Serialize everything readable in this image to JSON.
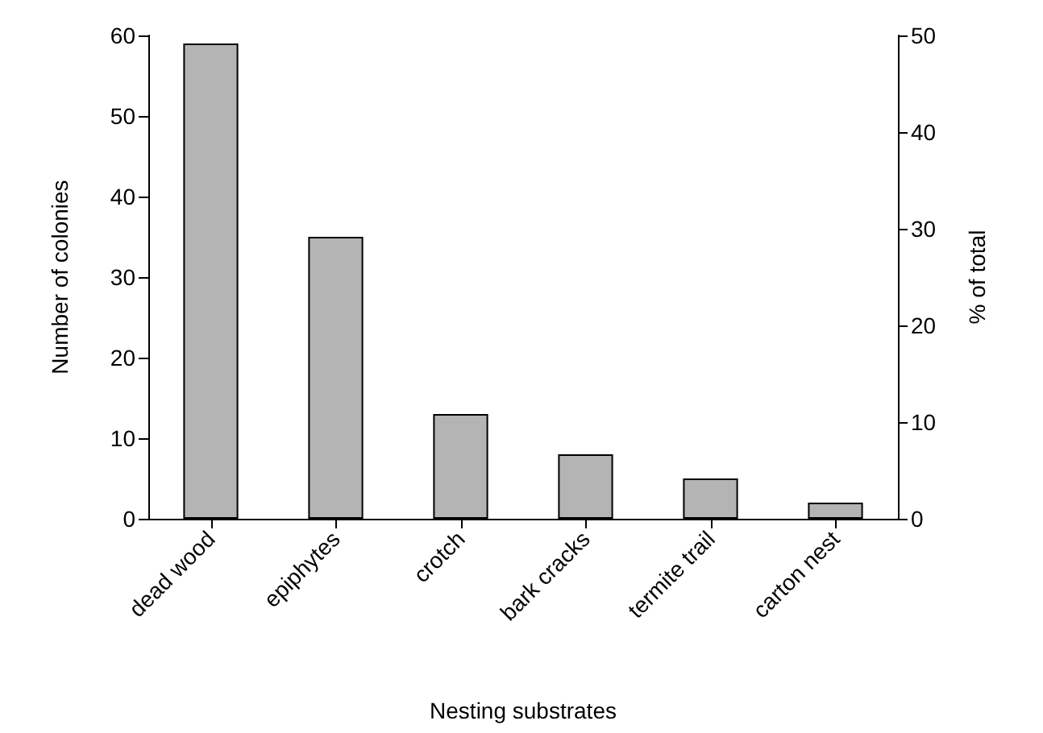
{
  "chart_data": {
    "type": "bar",
    "xlabel": "Nesting substrates",
    "ylabel": "Number of colonies",
    "y2label": "% of total",
    "categories": [
      "dead wood",
      "epiphytes",
      "crotch",
      "bark cracks",
      "termite trail",
      "carton nest"
    ],
    "values": [
      59,
      35,
      13,
      8,
      5,
      2
    ],
    "color": "#b4b4b4",
    "ylim": [
      0,
      60
    ],
    "yticks": [
      0,
      10,
      20,
      30,
      40,
      50,
      60
    ],
    "y2lim": [
      0,
      50
    ],
    "y2ticks": [
      0,
      10,
      20,
      30,
      40,
      50
    ]
  }
}
